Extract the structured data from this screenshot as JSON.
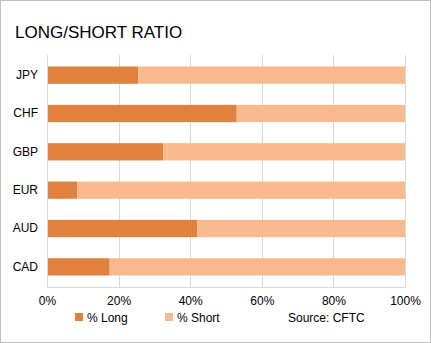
{
  "chart_data": {
    "type": "bar",
    "orientation": "horizontal",
    "stacked": true,
    "title": "LONG/SHORT RATIO",
    "categories": [
      "JPY",
      "CHF",
      "GBP",
      "EUR",
      "AUD",
      "CAD"
    ],
    "series": [
      {
        "name": "% Long",
        "color": "#e0823d",
        "values": [
          25.5,
          53,
          32.5,
          8.5,
          42,
          17.5
        ]
      },
      {
        "name": "% Short",
        "color": "#f9b98f",
        "values": [
          74.5,
          47,
          67.5,
          91.5,
          58,
          82.5
        ]
      }
    ],
    "xlim": [
      0,
      100
    ],
    "xticks": [
      {
        "value": 0,
        "label": "0%"
      },
      {
        "value": 20,
        "label": "20%"
      },
      {
        "value": 40,
        "label": "40%"
      },
      {
        "value": 60,
        "label": "60%"
      },
      {
        "value": 80,
        "label": "80%"
      },
      {
        "value": 100,
        "label": "100%"
      }
    ],
    "grid": true,
    "legend": "bottom",
    "annotations": [
      "Source: CFTC"
    ]
  }
}
